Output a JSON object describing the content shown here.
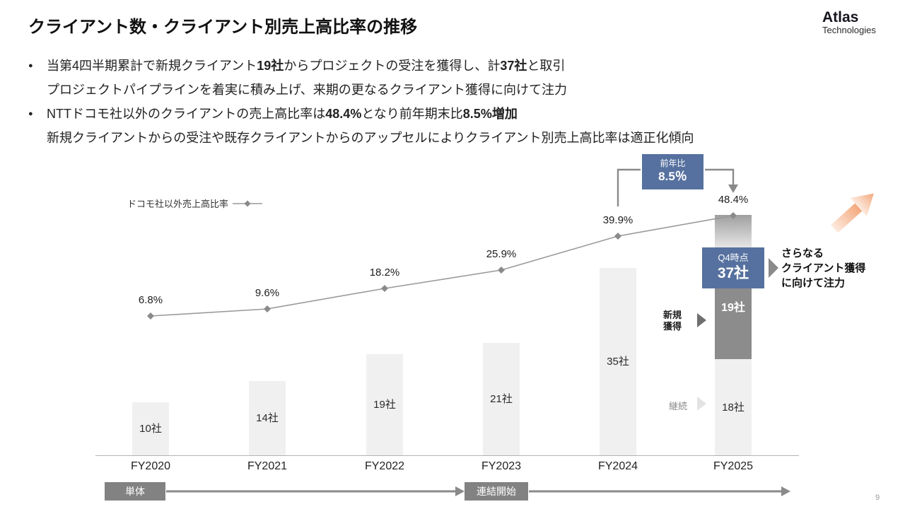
{
  "slide": {
    "title": "クライアント数・クライアント別売上高比率の推移",
    "logo": {
      "primary": "Atlas",
      "secondary": "Technologies"
    },
    "page_number": "9",
    "bullets": [
      {
        "bullet": true,
        "segments": [
          {
            "t": "当第4四半期累計で新規クライアント",
            "b": false
          },
          {
            "t": "19社",
            "b": true
          },
          {
            "t": "からプロジェクトの受注を獲得し、計",
            "b": false
          },
          {
            "t": "37社",
            "b": true
          },
          {
            "t": "と取引",
            "b": false
          }
        ]
      },
      {
        "bullet": false,
        "segments": [
          {
            "t": "プロジェクトパイプラインを着実に積み上げ、来期の更なるクライアント獲得に向けて注力",
            "b": false
          }
        ]
      },
      {
        "bullet": true,
        "segments": [
          {
            "t": "NTTドコモ社以外のクライアントの売上高比率は",
            "b": false
          },
          {
            "t": "48.4%",
            "b": true
          },
          {
            "t": "となり前年期末比",
            "b": false
          },
          {
            "t": "8.5%",
            "b": true
          },
          {
            "t": "増加",
            "b": true
          }
        ]
      },
      {
        "bullet": false,
        "segments": [
          {
            "t": "新規クライアントからの受注や既存クライアントからのアップセルによりクライアント別売上高比率は適正化傾向",
            "b": false
          }
        ]
      }
    ]
  },
  "chart_data": {
    "type": "bar",
    "title": "クライアント数・クライアント別売上高比率の推移",
    "categories": [
      "FY2020",
      "FY2021",
      "FY2022",
      "FY2023",
      "FY2024",
      "FY2025"
    ],
    "series": [
      {
        "name": "継続クライアント数",
        "values": [
          10,
          14,
          19,
          21,
          35,
          18
        ],
        "labels": [
          "10社",
          "14社",
          "19社",
          "21社",
          "35社",
          "18社"
        ]
      },
      {
        "name": "新規獲得クライアント数",
        "values": [
          0,
          0,
          0,
          0,
          0,
          19
        ],
        "labels": [
          "",
          "",
          "",
          "",
          "",
          "19社"
        ]
      }
    ],
    "line_series": {
      "name": "ドコモ社以外売上高比率",
      "values": [
        6.8,
        9.6,
        18.2,
        25.9,
        39.9,
        48.4
      ],
      "labels": [
        "6.8%",
        "9.6%",
        "18.2%",
        "25.9%",
        "39.9%",
        "48.4%"
      ]
    },
    "legend": {
      "label": "ドコモ社以外売上高比率",
      "position": "top-left"
    },
    "annotations": {
      "yoy_badge": {
        "title": "前年比",
        "value": "8.5％"
      },
      "q4_badge": {
        "title": "Q4時点",
        "value": "37社"
      },
      "new_label": "新規\n獲得",
      "continuing_label": "継続",
      "goal_text": "さらなる\nクライアント獲得\nに向けて注力"
    },
    "timeline": [
      {
        "label": "単体"
      },
      {
        "label": "連結開始"
      }
    ],
    "grid": false
  },
  "colors": {
    "accent_blue": "#56719f",
    "bar_light": "#f0f0f0",
    "bar_dark": "#8c8c8c",
    "line_gray": "#9a9a9a",
    "marker_gray": "#8a8a8a",
    "timeline_gray": "#828282",
    "arrow_orange": "#f3a87c"
  }
}
